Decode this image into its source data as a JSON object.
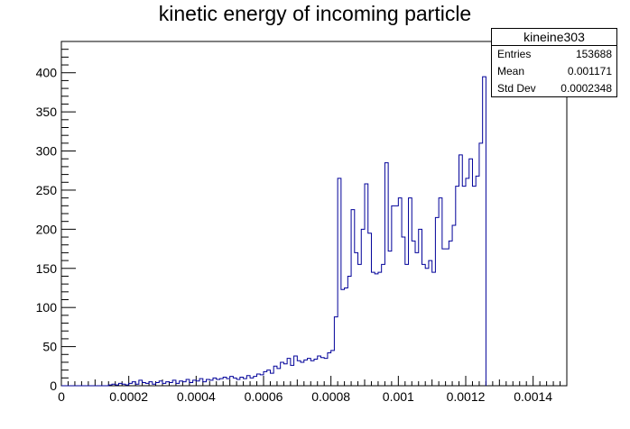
{
  "chart_data": {
    "type": "histogram",
    "title": "kinetic energy of incoming particle",
    "xlabel": "",
    "ylabel": "",
    "xlim": [
      0,
      0.0015
    ],
    "ylim": [
      0,
      440
    ],
    "x_ticks": [
      0,
      0.0002,
      0.0004,
      0.0006,
      0.0008,
      0.001,
      0.0012,
      0.0014
    ],
    "x_tick_labels": [
      "0",
      "0.0002",
      "0.0004",
      "0.0006",
      "0.0008",
      "0.001",
      "0.0012",
      "0.0014"
    ],
    "y_ticks": [
      0,
      50,
      100,
      150,
      200,
      250,
      300,
      350,
      400
    ],
    "y_tick_labels": [
      "0",
      "50",
      "100",
      "150",
      "200",
      "250",
      "300",
      "350",
      "400"
    ],
    "grid": false,
    "line_color": "#000099",
    "bin_width": 1e-05,
    "values": [
      0,
      0,
      0,
      0,
      0,
      0,
      0,
      0,
      0,
      0,
      0,
      0,
      0,
      0,
      1,
      2,
      1,
      3,
      2,
      1,
      3,
      5,
      2,
      7,
      4,
      3,
      5,
      2,
      4,
      6,
      3,
      5,
      4,
      7,
      3,
      6,
      5,
      8,
      4,
      7,
      6,
      9,
      5,
      8,
      7,
      10,
      8,
      9,
      11,
      9,
      12,
      10,
      8,
      11,
      9,
      13,
      10,
      12,
      15,
      14,
      18,
      20,
      16,
      25,
      22,
      30,
      28,
      35,
      26,
      38,
      32,
      30,
      33,
      35,
      32,
      34,
      38,
      36,
      35,
      42,
      45,
      88,
      265,
      123,
      125,
      140,
      225,
      170,
      155,
      200,
      258,
      195,
      145,
      143,
      145,
      155,
      285,
      172,
      230,
      230,
      240,
      190,
      155,
      240,
      185,
      170,
      200,
      155,
      150,
      160,
      145,
      215,
      240,
      175,
      175,
      185,
      205,
      255,
      295,
      255,
      265,
      290,
      255,
      268,
      310,
      395
    ]
  },
  "statbox": {
    "name": "kineine303",
    "rows": [
      {
        "label": "Entries",
        "value": "153688"
      },
      {
        "label": "Mean",
        "value": "0.001171"
      },
      {
        "label": "Std Dev",
        "value": "0.0002348"
      }
    ]
  }
}
